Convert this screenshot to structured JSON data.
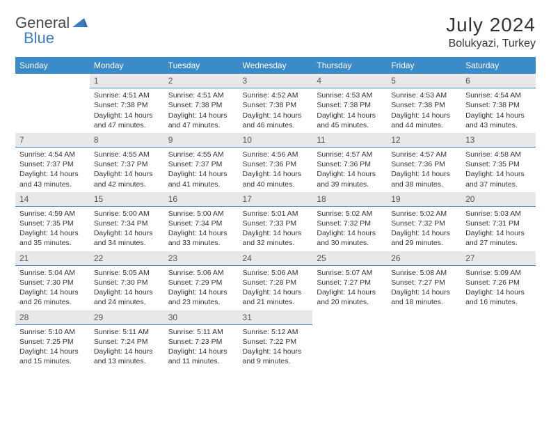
{
  "brand": {
    "part1": "General",
    "part2": "Blue"
  },
  "title": "July 2024",
  "location": "Bolukyazi, Turkey",
  "colors": {
    "header_bg": "#3b8bc8",
    "header_text": "#ffffff",
    "daynum_bg": "#e8e8e8",
    "daynum_border": "#3b8bc8",
    "body_text": "#333333",
    "brand_gray": "#4a4a4a",
    "brand_blue": "#3b7bbf"
  },
  "weekdays": [
    "Sunday",
    "Monday",
    "Tuesday",
    "Wednesday",
    "Thursday",
    "Friday",
    "Saturday"
  ],
  "weeks": [
    [
      null,
      {
        "n": "1",
        "sr": "Sunrise: 4:51 AM",
        "ss": "Sunset: 7:38 PM",
        "d1": "Daylight: 14 hours",
        "d2": "and 47 minutes."
      },
      {
        "n": "2",
        "sr": "Sunrise: 4:51 AM",
        "ss": "Sunset: 7:38 PM",
        "d1": "Daylight: 14 hours",
        "d2": "and 47 minutes."
      },
      {
        "n": "3",
        "sr": "Sunrise: 4:52 AM",
        "ss": "Sunset: 7:38 PM",
        "d1": "Daylight: 14 hours",
        "d2": "and 46 minutes."
      },
      {
        "n": "4",
        "sr": "Sunrise: 4:53 AM",
        "ss": "Sunset: 7:38 PM",
        "d1": "Daylight: 14 hours",
        "d2": "and 45 minutes."
      },
      {
        "n": "5",
        "sr": "Sunrise: 4:53 AM",
        "ss": "Sunset: 7:38 PM",
        "d1": "Daylight: 14 hours",
        "d2": "and 44 minutes."
      },
      {
        "n": "6",
        "sr": "Sunrise: 4:54 AM",
        "ss": "Sunset: 7:38 PM",
        "d1": "Daylight: 14 hours",
        "d2": "and 43 minutes."
      }
    ],
    [
      {
        "n": "7",
        "sr": "Sunrise: 4:54 AM",
        "ss": "Sunset: 7:37 PM",
        "d1": "Daylight: 14 hours",
        "d2": "and 43 minutes."
      },
      {
        "n": "8",
        "sr": "Sunrise: 4:55 AM",
        "ss": "Sunset: 7:37 PM",
        "d1": "Daylight: 14 hours",
        "d2": "and 42 minutes."
      },
      {
        "n": "9",
        "sr": "Sunrise: 4:55 AM",
        "ss": "Sunset: 7:37 PM",
        "d1": "Daylight: 14 hours",
        "d2": "and 41 minutes."
      },
      {
        "n": "10",
        "sr": "Sunrise: 4:56 AM",
        "ss": "Sunset: 7:36 PM",
        "d1": "Daylight: 14 hours",
        "d2": "and 40 minutes."
      },
      {
        "n": "11",
        "sr": "Sunrise: 4:57 AM",
        "ss": "Sunset: 7:36 PM",
        "d1": "Daylight: 14 hours",
        "d2": "and 39 minutes."
      },
      {
        "n": "12",
        "sr": "Sunrise: 4:57 AM",
        "ss": "Sunset: 7:36 PM",
        "d1": "Daylight: 14 hours",
        "d2": "and 38 minutes."
      },
      {
        "n": "13",
        "sr": "Sunrise: 4:58 AM",
        "ss": "Sunset: 7:35 PM",
        "d1": "Daylight: 14 hours",
        "d2": "and 37 minutes."
      }
    ],
    [
      {
        "n": "14",
        "sr": "Sunrise: 4:59 AM",
        "ss": "Sunset: 7:35 PM",
        "d1": "Daylight: 14 hours",
        "d2": "and 35 minutes."
      },
      {
        "n": "15",
        "sr": "Sunrise: 5:00 AM",
        "ss": "Sunset: 7:34 PM",
        "d1": "Daylight: 14 hours",
        "d2": "and 34 minutes."
      },
      {
        "n": "16",
        "sr": "Sunrise: 5:00 AM",
        "ss": "Sunset: 7:34 PM",
        "d1": "Daylight: 14 hours",
        "d2": "and 33 minutes."
      },
      {
        "n": "17",
        "sr": "Sunrise: 5:01 AM",
        "ss": "Sunset: 7:33 PM",
        "d1": "Daylight: 14 hours",
        "d2": "and 32 minutes."
      },
      {
        "n": "18",
        "sr": "Sunrise: 5:02 AM",
        "ss": "Sunset: 7:32 PM",
        "d1": "Daylight: 14 hours",
        "d2": "and 30 minutes."
      },
      {
        "n": "19",
        "sr": "Sunrise: 5:02 AM",
        "ss": "Sunset: 7:32 PM",
        "d1": "Daylight: 14 hours",
        "d2": "and 29 minutes."
      },
      {
        "n": "20",
        "sr": "Sunrise: 5:03 AM",
        "ss": "Sunset: 7:31 PM",
        "d1": "Daylight: 14 hours",
        "d2": "and 27 minutes."
      }
    ],
    [
      {
        "n": "21",
        "sr": "Sunrise: 5:04 AM",
        "ss": "Sunset: 7:30 PM",
        "d1": "Daylight: 14 hours",
        "d2": "and 26 minutes."
      },
      {
        "n": "22",
        "sr": "Sunrise: 5:05 AM",
        "ss": "Sunset: 7:30 PM",
        "d1": "Daylight: 14 hours",
        "d2": "and 24 minutes."
      },
      {
        "n": "23",
        "sr": "Sunrise: 5:06 AM",
        "ss": "Sunset: 7:29 PM",
        "d1": "Daylight: 14 hours",
        "d2": "and 23 minutes."
      },
      {
        "n": "24",
        "sr": "Sunrise: 5:06 AM",
        "ss": "Sunset: 7:28 PM",
        "d1": "Daylight: 14 hours",
        "d2": "and 21 minutes."
      },
      {
        "n": "25",
        "sr": "Sunrise: 5:07 AM",
        "ss": "Sunset: 7:27 PM",
        "d1": "Daylight: 14 hours",
        "d2": "and 20 minutes."
      },
      {
        "n": "26",
        "sr": "Sunrise: 5:08 AM",
        "ss": "Sunset: 7:27 PM",
        "d1": "Daylight: 14 hours",
        "d2": "and 18 minutes."
      },
      {
        "n": "27",
        "sr": "Sunrise: 5:09 AM",
        "ss": "Sunset: 7:26 PM",
        "d1": "Daylight: 14 hours",
        "d2": "and 16 minutes."
      }
    ],
    [
      {
        "n": "28",
        "sr": "Sunrise: 5:10 AM",
        "ss": "Sunset: 7:25 PM",
        "d1": "Daylight: 14 hours",
        "d2": "and 15 minutes."
      },
      {
        "n": "29",
        "sr": "Sunrise: 5:11 AM",
        "ss": "Sunset: 7:24 PM",
        "d1": "Daylight: 14 hours",
        "d2": "and 13 minutes."
      },
      {
        "n": "30",
        "sr": "Sunrise: 5:11 AM",
        "ss": "Sunset: 7:23 PM",
        "d1": "Daylight: 14 hours",
        "d2": "and 11 minutes."
      },
      {
        "n": "31",
        "sr": "Sunrise: 5:12 AM",
        "ss": "Sunset: 7:22 PM",
        "d1": "Daylight: 14 hours",
        "d2": "and 9 minutes."
      },
      null,
      null,
      null
    ]
  ]
}
